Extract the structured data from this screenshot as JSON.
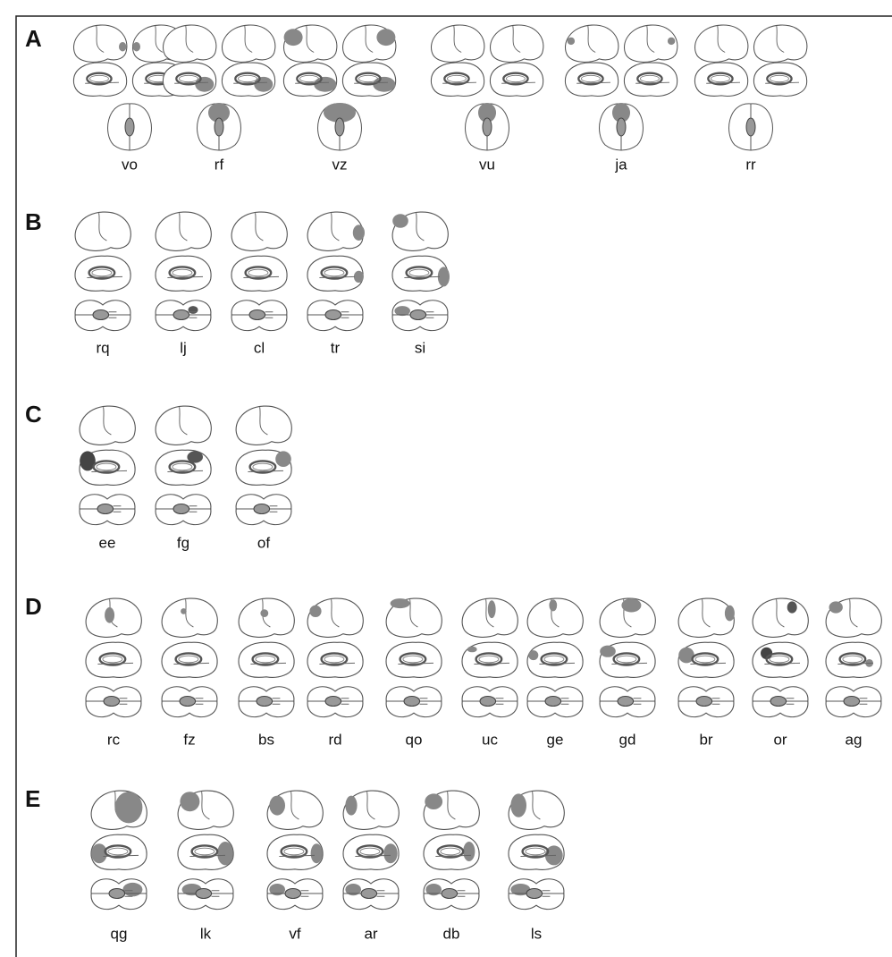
{
  "panels": [
    {
      "letter": "A",
      "items": [
        "vo",
        "rf",
        "vz",
        "vu",
        "ja",
        "rr"
      ]
    },
    {
      "letter": "B",
      "items": [
        "rq",
        "lj",
        "cl",
        "tr",
        "si"
      ]
    },
    {
      "letter": "C",
      "items": [
        "ee",
        "fg",
        "of"
      ]
    },
    {
      "letter": "D",
      "items": [
        "rc",
        "fz",
        "bs",
        "rd",
        "qo",
        "uc",
        "ge",
        "gd",
        "br",
        "or",
        "ag"
      ]
    },
    {
      "letter": "E",
      "items": [
        "qg",
        "lk",
        "vf",
        "ar",
        "db",
        "ls"
      ]
    }
  ]
}
